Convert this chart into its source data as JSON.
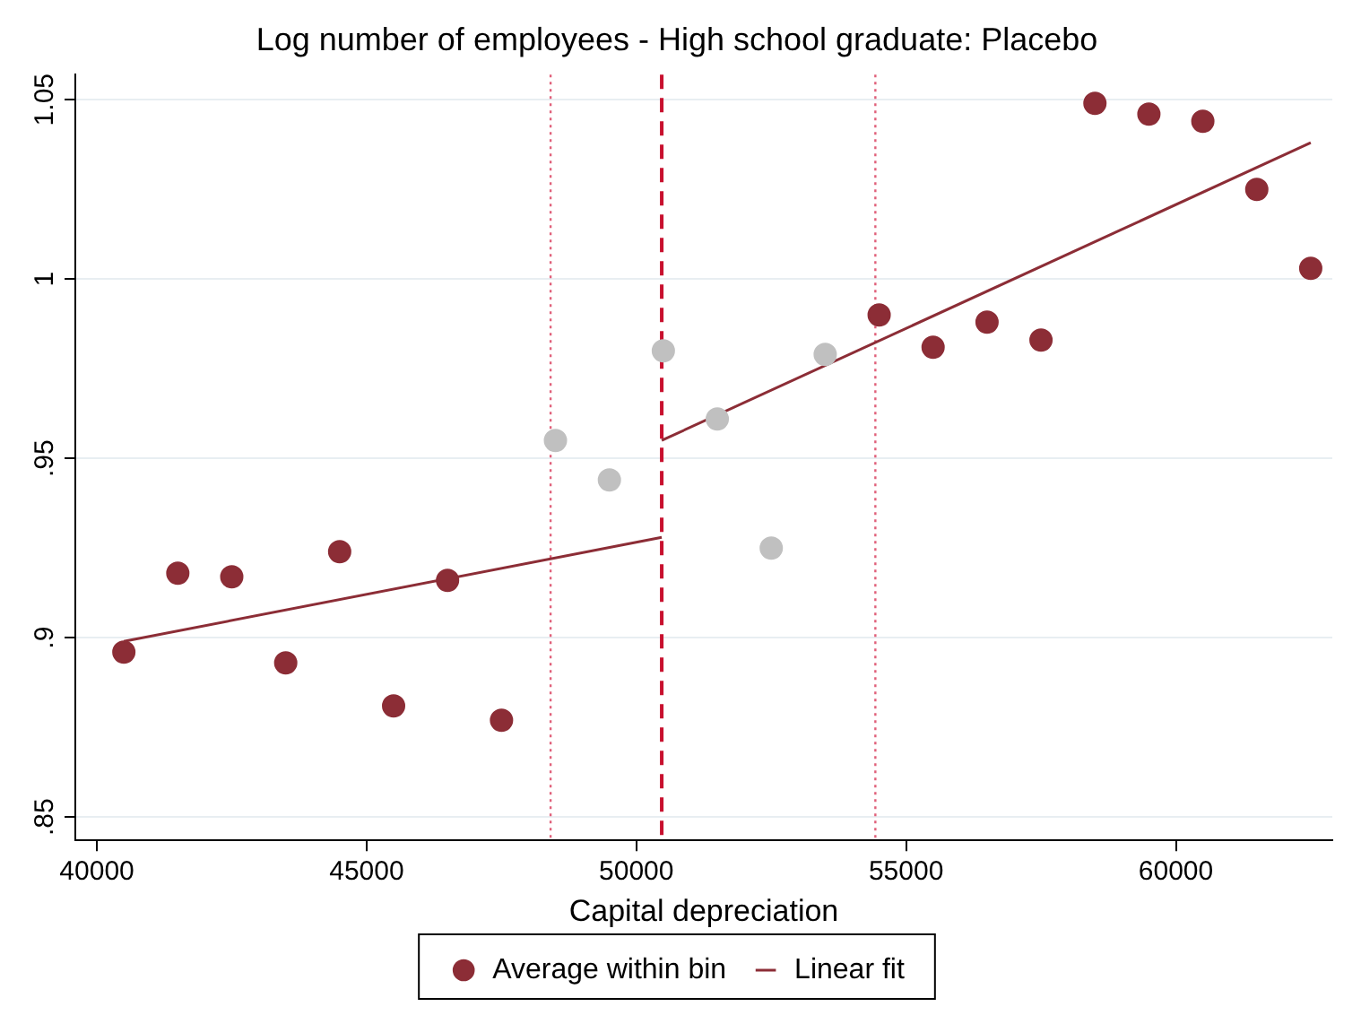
{
  "chart_data": {
    "type": "scatter",
    "title": "Log number of employees - High school graduate: Placebo",
    "xlabel": "Capital depreciation",
    "xlim": [
      39600,
      62900
    ],
    "xticks": [
      40000,
      45000,
      50000,
      55000,
      60000
    ],
    "ylim": [
      0.8435,
      1.057
    ],
    "yticks": [
      {
        "value": 0.85,
        "label": ".85"
      },
      {
        "value": 0.9,
        "label": ".9"
      },
      {
        "value": 0.95,
        "label": ".95"
      },
      {
        "value": 1,
        "label": "1"
      },
      {
        "value": 1.05,
        "label": "1.05"
      }
    ],
    "grid": "y",
    "legend": "bottom",
    "marker": "circle",
    "series": [
      {
        "name": "Average within bin",
        "color": "#8c2d36",
        "x": [
          40500,
          41500,
          42500,
          43500,
          44500,
          45500,
          46500,
          47500,
          54500,
          55500,
          56500,
          57500,
          58500,
          59500,
          60500,
          61500,
          62500
        ],
        "values": [
          0.896,
          0.918,
          0.917,
          0.893,
          0.924,
          0.881,
          0.916,
          0.877,
          0.99,
          0.981,
          0.988,
          0.983,
          1.049,
          1.046,
          1.044,
          1.025,
          1.003
        ]
      },
      {
        "color": "#c0c0c0",
        "x": [
          48500,
          49500,
          50500,
          51500,
          52500,
          53500
        ],
        "values": [
          0.955,
          0.944,
          0.98,
          0.961,
          0.925,
          0.979
        ]
      },
      {
        "name": "Linear fit",
        "type": "line",
        "color": "#8c2d36",
        "marker": "none",
        "x": [
          40500,
          50470
        ],
        "values": [
          0.899,
          0.928
        ]
      },
      {
        "type": "line",
        "color": "#8c2d36",
        "marker": "none",
        "x": [
          50470,
          62500
        ],
        "values": [
          0.955,
          1.038
        ]
      }
    ],
    "ref_lines": [
      {
        "axis": "x",
        "value": 50470,
        "color": "#c8102e",
        "line_style": "dashed"
      },
      {
        "axis": "x",
        "value": 48410,
        "color": "#e0607a",
        "line_style": "dotted"
      },
      {
        "axis": "x",
        "value": 54430,
        "color": "#e0607a",
        "line_style": "dotted"
      }
    ]
  }
}
